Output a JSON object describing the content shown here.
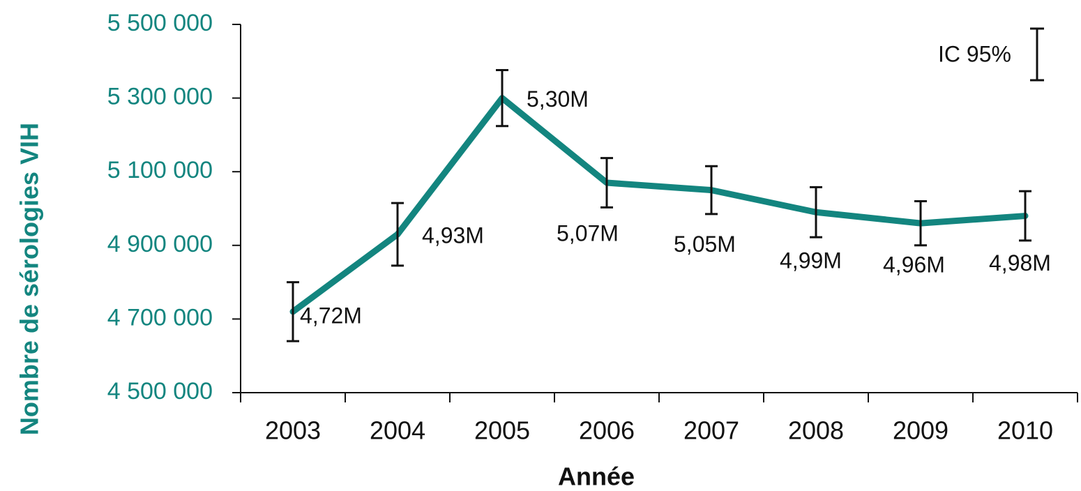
{
  "chart_data": {
    "type": "line",
    "x_label": "Année",
    "y_label": "Nombre de sérologies VIH",
    "annotation": "IC 95%",
    "categories": [
      "2003",
      "2004",
      "2005",
      "2006",
      "2007",
      "2008",
      "2009",
      "2010"
    ],
    "series": [
      {
        "color": "#13857f",
        "values": [
          4720000,
          4930000,
          5300000,
          5070000,
          5050000,
          4990000,
          4960000,
          4980000
        ],
        "value_labels": [
          "4,72M",
          "4,93M",
          "5,30M",
          "5,07M",
          "5,05M",
          "4,99M",
          "4,96M",
          "4,98M"
        ],
        "errors": [
          80000,
          85000,
          76000,
          67000,
          65000,
          68000,
          60000,
          67000
        ]
      }
    ],
    "ylim": [
      4500000,
      5500000
    ],
    "yticks": [
      {
        "value": 4500000,
        "label": "4 500 000"
      },
      {
        "value": 4700000,
        "label": "4 700 000"
      },
      {
        "value": 4900000,
        "label": "4 900 000"
      },
      {
        "value": 5100000,
        "label": "5 100 000"
      },
      {
        "value": 5300000,
        "label": "5 300 000"
      },
      {
        "value": 5500000,
        "label": "5 500 000"
      }
    ]
  }
}
